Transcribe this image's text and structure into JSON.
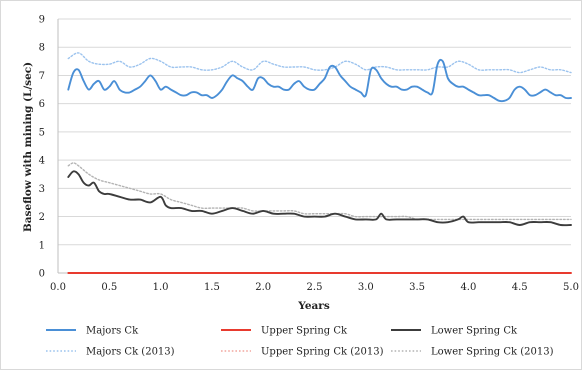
{
  "chart_data": {
    "type": "line",
    "title": "",
    "xlabel": "Years",
    "ylabel": "Baseflow with mining (L/sec)",
    "xlim": [
      0,
      5
    ],
    "ylim": [
      0,
      9
    ],
    "xticks": [
      "0.0",
      "0.5",
      "1.0",
      "1.5",
      "2.0",
      "2.5",
      "3.0",
      "3.5",
      "4.0",
      "4.5",
      "5.0"
    ],
    "yticks": [
      "0",
      "1",
      "2",
      "3",
      "4",
      "5",
      "6",
      "7",
      "8",
      "9"
    ],
    "grid": true,
    "legend_position": "bottom",
    "series": [
      {
        "name": "Majors Ck",
        "color": "#4a8fd6",
        "style": "solid",
        "x": [
          0.1,
          0.15,
          0.2,
          0.25,
          0.3,
          0.35,
          0.4,
          0.45,
          0.5,
          0.55,
          0.6,
          0.65,
          0.7,
          0.75,
          0.8,
          0.85,
          0.9,
          0.95,
          1.0,
          1.05,
          1.1,
          1.15,
          1.2,
          1.25,
          1.3,
          1.35,
          1.4,
          1.45,
          1.5,
          1.55,
          1.6,
          1.65,
          1.7,
          1.75,
          1.8,
          1.85,
          1.9,
          1.95,
          2.0,
          2.05,
          2.1,
          2.15,
          2.2,
          2.25,
          2.3,
          2.35,
          2.4,
          2.45,
          2.5,
          2.55,
          2.6,
          2.65,
          2.7,
          2.75,
          2.8,
          2.85,
          2.9,
          2.95,
          3.0,
          3.05,
          3.1,
          3.15,
          3.2,
          3.25,
          3.3,
          3.35,
          3.4,
          3.45,
          3.5,
          3.55,
          3.6,
          3.65,
          3.7,
          3.75,
          3.8,
          3.85,
          3.9,
          3.95,
          4.0,
          4.05,
          4.1,
          4.15,
          4.2,
          4.25,
          4.3,
          4.35,
          4.4,
          4.45,
          4.5,
          4.55,
          4.6,
          4.65,
          4.7,
          4.75,
          4.8,
          4.85,
          4.9,
          4.95,
          5.0
        ],
        "y": [
          6.5,
          7.1,
          7.2,
          6.8,
          6.5,
          6.7,
          6.8,
          6.5,
          6.6,
          6.8,
          6.5,
          6.4,
          6.4,
          6.5,
          6.6,
          6.8,
          7.0,
          6.8,
          6.5,
          6.6,
          6.5,
          6.4,
          6.3,
          6.3,
          6.4,
          6.4,
          6.3,
          6.3,
          6.2,
          6.3,
          6.5,
          6.8,
          7.0,
          6.9,
          6.8,
          6.6,
          6.5,
          6.9,
          6.9,
          6.7,
          6.6,
          6.6,
          6.5,
          6.5,
          6.7,
          6.8,
          6.6,
          6.5,
          6.5,
          6.7,
          6.9,
          7.3,
          7.3,
          7.0,
          6.8,
          6.6,
          6.5,
          6.4,
          6.3,
          7.2,
          7.2,
          6.9,
          6.7,
          6.6,
          6.6,
          6.5,
          6.5,
          6.6,
          6.6,
          6.5,
          6.4,
          6.4,
          7.4,
          7.5,
          6.9,
          6.7,
          6.6,
          6.6,
          6.5,
          6.4,
          6.3,
          6.3,
          6.3,
          6.2,
          6.1,
          6.1,
          6.2,
          6.5,
          6.6,
          6.5,
          6.3,
          6.3,
          6.4,
          6.5,
          6.4,
          6.3,
          6.3,
          6.2,
          6.2
        ],
        "note": "approximate"
      },
      {
        "name": "Upper Spring Ck",
        "color": "#e83a2e",
        "style": "solid",
        "x": [
          0.1,
          5.0
        ],
        "y": [
          0.0,
          0.0
        ]
      },
      {
        "name": "Lower Spring Ck",
        "color": "#3c3c3c",
        "style": "solid",
        "x": [
          0.1,
          0.15,
          0.2,
          0.25,
          0.3,
          0.35,
          0.4,
          0.45,
          0.5,
          0.6,
          0.7,
          0.8,
          0.9,
          1.0,
          1.05,
          1.1,
          1.2,
          1.3,
          1.4,
          1.5,
          1.6,
          1.7,
          1.8,
          1.9,
          2.0,
          2.1,
          2.2,
          2.3,
          2.4,
          2.5,
          2.6,
          2.7,
          2.8,
          2.9,
          3.0,
          3.1,
          3.15,
          3.2,
          3.3,
          3.4,
          3.5,
          3.6,
          3.7,
          3.8,
          3.9,
          3.95,
          4.0,
          4.1,
          4.2,
          4.3,
          4.4,
          4.5,
          4.6,
          4.7,
          4.8,
          4.9,
          5.0
        ],
        "y": [
          3.4,
          3.6,
          3.5,
          3.2,
          3.1,
          3.2,
          2.9,
          2.8,
          2.8,
          2.7,
          2.6,
          2.6,
          2.5,
          2.7,
          2.4,
          2.3,
          2.3,
          2.2,
          2.2,
          2.1,
          2.2,
          2.3,
          2.2,
          2.1,
          2.2,
          2.1,
          2.1,
          2.1,
          2.0,
          2.0,
          2.0,
          2.1,
          2.0,
          1.9,
          1.9,
          1.9,
          2.1,
          1.9,
          1.9,
          1.9,
          1.9,
          1.9,
          1.8,
          1.8,
          1.9,
          2.0,
          1.8,
          1.8,
          1.8,
          1.8,
          1.8,
          1.7,
          1.8,
          1.8,
          1.8,
          1.7,
          1.7
        ],
        "note": "approximate"
      },
      {
        "name": "Majors Ck (2013)",
        "color": "#9cc3ee",
        "style": "dotted",
        "x": [
          0.1,
          0.2,
          0.3,
          0.4,
          0.5,
          0.6,
          0.7,
          0.8,
          0.9,
          1.0,
          1.1,
          1.2,
          1.3,
          1.4,
          1.5,
          1.6,
          1.7,
          1.8,
          1.9,
          2.0,
          2.1,
          2.2,
          2.3,
          2.4,
          2.5,
          2.6,
          2.7,
          2.8,
          2.9,
          3.0,
          3.1,
          3.2,
          3.3,
          3.4,
          3.5,
          3.6,
          3.7,
          3.8,
          3.9,
          4.0,
          4.1,
          4.2,
          4.3,
          4.4,
          4.5,
          4.6,
          4.7,
          4.8,
          4.9,
          5.0
        ],
        "y": [
          7.6,
          7.8,
          7.5,
          7.4,
          7.4,
          7.5,
          7.3,
          7.4,
          7.6,
          7.5,
          7.3,
          7.3,
          7.3,
          7.2,
          7.2,
          7.3,
          7.5,
          7.3,
          7.2,
          7.5,
          7.4,
          7.3,
          7.3,
          7.3,
          7.2,
          7.2,
          7.3,
          7.5,
          7.4,
          7.2,
          7.3,
          7.3,
          7.2,
          7.2,
          7.2,
          7.2,
          7.3,
          7.3,
          7.5,
          7.4,
          7.2,
          7.2,
          7.2,
          7.2,
          7.1,
          7.2,
          7.3,
          7.2,
          7.2,
          7.1
        ],
        "note": "approximate"
      },
      {
        "name": "Upper Spring Ck (2013)",
        "color": "#f2a59e",
        "style": "dotted",
        "x": [
          0.1,
          5.0
        ],
        "y": [
          0.0,
          0.0
        ]
      },
      {
        "name": "Lower Spring Ck (2013)",
        "color": "#b3b3b3",
        "style": "dotted",
        "x": [
          0.1,
          0.15,
          0.2,
          0.3,
          0.4,
          0.5,
          0.6,
          0.7,
          0.8,
          0.9,
          1.0,
          1.1,
          1.2,
          1.3,
          1.4,
          1.5,
          1.6,
          1.7,
          1.8,
          1.9,
          2.0,
          2.1,
          2.2,
          2.3,
          2.4,
          2.5,
          2.6,
          2.7,
          2.8,
          2.9,
          3.0,
          3.1,
          3.2,
          3.3,
          3.4,
          3.5,
          3.6,
          3.7,
          3.8,
          3.9,
          4.0,
          4.1,
          4.2,
          4.3,
          4.4,
          4.5,
          4.6,
          4.7,
          4.8,
          4.9,
          5.0
        ],
        "y": [
          3.8,
          3.9,
          3.8,
          3.5,
          3.3,
          3.2,
          3.1,
          3.0,
          2.9,
          2.8,
          2.8,
          2.6,
          2.5,
          2.4,
          2.3,
          2.3,
          2.3,
          2.3,
          2.3,
          2.2,
          2.2,
          2.2,
          2.2,
          2.2,
          2.1,
          2.1,
          2.1,
          2.1,
          2.1,
          2.0,
          2.0,
          2.0,
          2.0,
          2.0,
          2.0,
          1.9,
          1.9,
          1.9,
          1.9,
          1.9,
          1.9,
          1.9,
          1.9,
          1.9,
          1.9,
          1.9,
          1.9,
          1.9,
          1.9,
          1.9,
          1.9
        ],
        "note": "approximate"
      }
    ],
    "legend_rows": [
      [
        "Majors Ck",
        "Upper Spring Ck",
        "Lower Spring Ck"
      ],
      [
        "Majors Ck (2013)",
        "Upper Spring Ck (2013)",
        "Lower Spring Ck (2013)"
      ]
    ]
  }
}
